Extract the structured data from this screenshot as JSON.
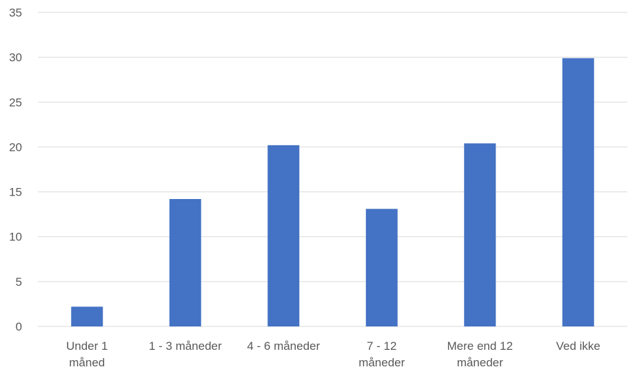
{
  "chart_data": {
    "type": "bar",
    "categories": [
      [
        "Under 1",
        "måned"
      ],
      [
        "1 - 3 måneder"
      ],
      [
        "4 - 6 måneder"
      ],
      [
        "7 - 12",
        "måneder"
      ],
      [
        "Mere end 12",
        "måneder"
      ],
      [
        "Ved ikke"
      ]
    ],
    "values": [
      2.2,
      14.2,
      20.2,
      13.1,
      20.4,
      29.9
    ],
    "ylim": [
      0,
      35
    ],
    "yticks": [
      0,
      5,
      10,
      15,
      20,
      25,
      30,
      35
    ],
    "grid": true,
    "legend": "none",
    "bar_color": "#4472C4",
    "grid_color": "#D9D9D9",
    "text_color": "#595959"
  }
}
